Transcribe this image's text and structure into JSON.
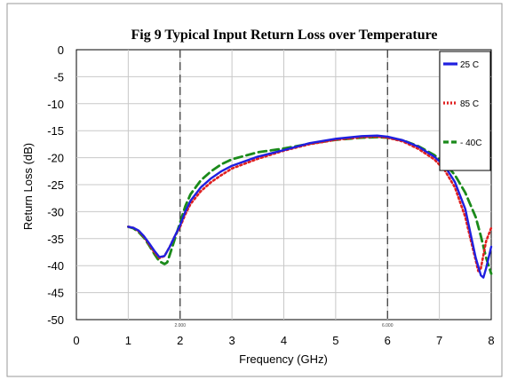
{
  "chart_data": {
    "type": "line",
    "title": "Fig 9 Typical Input Return Loss over Temperature",
    "xlabel": "Frequency (GHz)",
    "ylabel": "Return Loss (dB)",
    "xlim": [
      0,
      8
    ],
    "ylim": [
      -50,
      0
    ],
    "xticks": [
      "0",
      "1",
      "2",
      "3",
      "4",
      "5",
      "6",
      "7",
      "8"
    ],
    "yticks": [
      "0",
      "-5",
      "-10",
      "-15",
      "-20",
      "-25",
      "-30",
      "-35",
      "-40",
      "-45",
      "-50"
    ],
    "grid": true,
    "legend_position": "top-right",
    "markers": [
      {
        "x": 2.0,
        "label": "2.000"
      },
      {
        "x": 6.0,
        "label": "6.000"
      }
    ],
    "series": [
      {
        "name": "25 C",
        "color": "#1f1fe0",
        "style": "solid",
        "x": [
          1.0,
          1.1,
          1.2,
          1.3,
          1.4,
          1.5,
          1.6,
          1.7,
          1.8,
          1.9,
          2.0,
          2.1,
          2.2,
          2.4,
          2.6,
          2.8,
          3.0,
          3.5,
          4.0,
          4.5,
          5.0,
          5.5,
          5.8,
          6.0,
          6.3,
          6.6,
          6.9,
          7.1,
          7.3,
          7.5,
          7.6,
          7.7,
          7.8,
          7.85,
          7.9,
          8.0
        ],
        "y": [
          -32.8,
          -33.0,
          -33.5,
          -34.5,
          -35.8,
          -37.2,
          -38.4,
          -38.2,
          -36.5,
          -34.5,
          -32.5,
          -30.0,
          -28.0,
          -25.5,
          -23.8,
          -22.5,
          -21.5,
          -19.8,
          -18.6,
          -17.3,
          -16.5,
          -16.0,
          -15.9,
          -16.1,
          -16.8,
          -18.0,
          -19.8,
          -21.5,
          -24.5,
          -29.5,
          -34.0,
          -38.5,
          -41.8,
          -42.2,
          -40.5,
          -36.5
        ]
      },
      {
        "name": "85 C",
        "color": "#e02020",
        "style": "dotted",
        "x": [
          1.0,
          1.1,
          1.2,
          1.3,
          1.4,
          1.5,
          1.6,
          1.7,
          1.8,
          1.9,
          2.0,
          2.1,
          2.2,
          2.4,
          2.6,
          2.8,
          3.0,
          3.5,
          4.0,
          4.5,
          5.0,
          5.5,
          5.8,
          6.0,
          6.3,
          6.6,
          6.9,
          7.1,
          7.3,
          7.5,
          7.6,
          7.7,
          7.75,
          7.8,
          7.9,
          8.0
        ],
        "y": [
          -32.8,
          -33.0,
          -33.6,
          -34.6,
          -36.0,
          -37.5,
          -38.6,
          -38.2,
          -36.5,
          -34.5,
          -32.8,
          -30.5,
          -28.6,
          -26.2,
          -24.5,
          -23.2,
          -22.0,
          -20.2,
          -18.7,
          -17.5,
          -16.7,
          -16.2,
          -16.1,
          -16.3,
          -17.0,
          -18.4,
          -20.3,
          -22.3,
          -25.5,
          -31.0,
          -35.0,
          -39.0,
          -41.0,
          -40.5,
          -35.5,
          -33.0
        ]
      },
      {
        "name": "- 40C",
        "color": "#1a8a1a",
        "style": "dashed",
        "x": [
          1.0,
          1.1,
          1.2,
          1.3,
          1.4,
          1.5,
          1.6,
          1.7,
          1.75,
          1.8,
          1.9,
          2.0,
          2.1,
          2.2,
          2.4,
          2.6,
          2.8,
          3.0,
          3.5,
          4.0,
          4.5,
          5.0,
          5.5,
          5.8,
          6.0,
          6.3,
          6.6,
          6.9,
          7.1,
          7.3,
          7.5,
          7.7,
          7.8,
          7.9,
          8.0
        ],
        "y": [
          -32.8,
          -33.1,
          -33.8,
          -34.8,
          -36.2,
          -37.8,
          -39.2,
          -39.7,
          -39.4,
          -38.0,
          -35.0,
          -32.0,
          -29.0,
          -26.8,
          -24.2,
          -22.5,
          -21.2,
          -20.3,
          -19.0,
          -18.3,
          -17.4,
          -16.7,
          -16.3,
          -16.2,
          -16.3,
          -16.8,
          -17.9,
          -19.5,
          -21.0,
          -23.2,
          -26.5,
          -31.0,
          -34.5,
          -38.5,
          -41.5
        ]
      }
    ]
  }
}
